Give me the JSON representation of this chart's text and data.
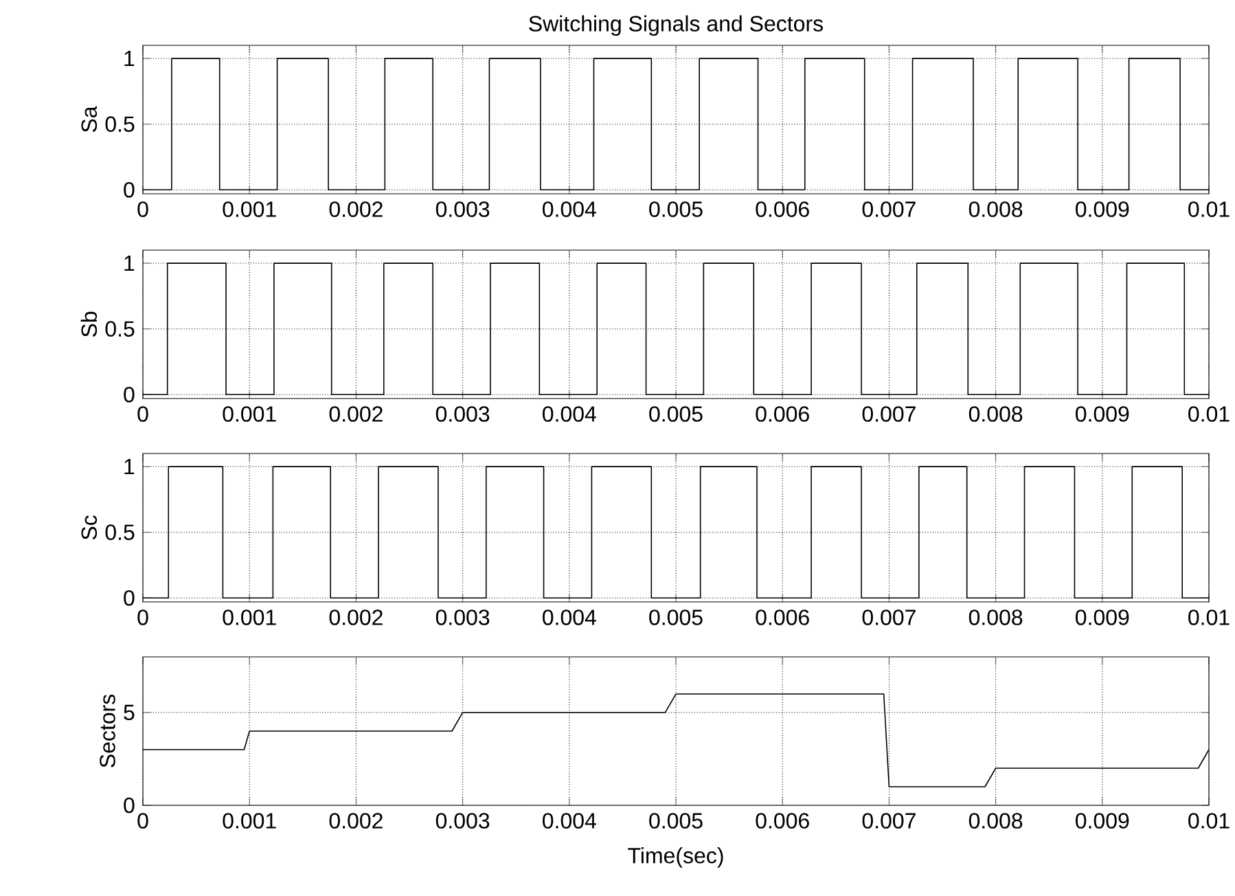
{
  "chart_data": [
    {
      "type": "step",
      "title": "Switching Signals and Sectors",
      "ylabel": "Sa",
      "color": "#000000",
      "grid": true,
      "x": [
        0,
        0.00027,
        0.00072,
        0.00126,
        0.00174,
        0.00227,
        0.00272,
        0.00325,
        0.00373,
        0.00423,
        0.00477,
        0.00522,
        0.00577,
        0.00621,
        0.00677,
        0.00722,
        0.00779,
        0.00821,
        0.00877,
        0.00925,
        0.00973,
        0.01
      ],
      "values": [
        0,
        1,
        0,
        1,
        0,
        1,
        0,
        1,
        0,
        1,
        0,
        1,
        0,
        1,
        0,
        1,
        0,
        1,
        0,
        1,
        0,
        0
      ],
      "xlim": [
        0,
        0.01
      ],
      "ylim": [
        -0.03,
        1.1
      ],
      "xticks": [
        0,
        0.001,
        0.002,
        0.003,
        0.004,
        0.005,
        0.006,
        0.007,
        0.008,
        0.009,
        0.01
      ],
      "yticks": [
        0,
        0.5,
        1
      ]
    },
    {
      "type": "step",
      "ylabel": "Sb",
      "color": "#000000",
      "grid": true,
      "x": [
        0,
        0.00023,
        0.00078,
        0.00123,
        0.00177,
        0.00226,
        0.00272,
        0.00326,
        0.00372,
        0.00426,
        0.00472,
        0.00526,
        0.00573,
        0.00627,
        0.00674,
        0.00726,
        0.00774,
        0.00823,
        0.00877,
        0.00923,
        0.00977,
        0.01
      ],
      "values": [
        0,
        1,
        0,
        1,
        0,
        1,
        0,
        1,
        0,
        1,
        0,
        1,
        0,
        1,
        0,
        1,
        0,
        1,
        0,
        1,
        0,
        0
      ],
      "xlim": [
        0,
        0.01
      ],
      "ylim": [
        -0.03,
        1.1
      ],
      "xticks": [
        0,
        0.001,
        0.002,
        0.003,
        0.004,
        0.005,
        0.006,
        0.007,
        0.008,
        0.009,
        0.01
      ],
      "yticks": [
        0,
        0.5,
        1
      ]
    },
    {
      "type": "step",
      "ylabel": "Sc",
      "color": "#000000",
      "grid": true,
      "x": [
        0,
        0.00024,
        0.00075,
        0.00122,
        0.00176,
        0.00221,
        0.00277,
        0.00322,
        0.00376,
        0.00421,
        0.00477,
        0.00523,
        0.00576,
        0.00627,
        0.00674,
        0.00728,
        0.00773,
        0.00827,
        0.00874,
        0.00928,
        0.00975,
        0.01
      ],
      "values": [
        0,
        1,
        0,
        1,
        0,
        1,
        0,
        1,
        0,
        1,
        0,
        1,
        0,
        1,
        0,
        1,
        0,
        1,
        0,
        1,
        0,
        0
      ],
      "xlim": [
        0,
        0.01
      ],
      "ylim": [
        -0.03,
        1.1
      ],
      "xticks": [
        0,
        0.001,
        0.002,
        0.003,
        0.004,
        0.005,
        0.006,
        0.007,
        0.008,
        0.009,
        0.01
      ],
      "yticks": [
        0,
        0.5,
        1
      ]
    },
    {
      "type": "line",
      "ylabel": "Sectors",
      "xlabel": "Time(sec)",
      "color": "#000000",
      "grid": true,
      "x": [
        0,
        0.00095,
        0.001,
        0.0029,
        0.003,
        0.0049,
        0.005,
        0.00695,
        0.007,
        0.0079,
        0.008,
        0.0099,
        0.01
      ],
      "values": [
        3,
        3,
        4,
        4,
        5,
        5,
        6,
        6,
        1,
        1,
        2,
        2,
        3
      ],
      "xlim": [
        0,
        0.01
      ],
      "ylim": [
        0,
        8
      ],
      "xticks": [
        0,
        0.001,
        0.002,
        0.003,
        0.004,
        0.005,
        0.006,
        0.007,
        0.008,
        0.009,
        0.01
      ],
      "yticks": [
        0,
        5
      ]
    }
  ]
}
